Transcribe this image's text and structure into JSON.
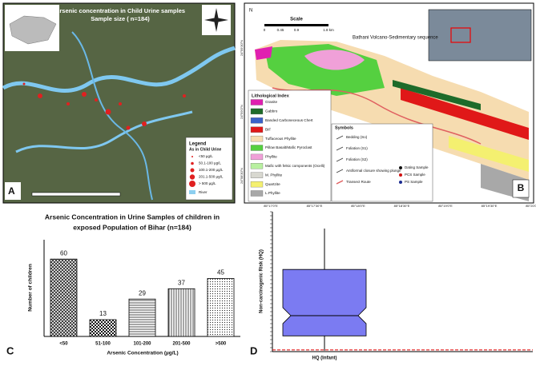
{
  "chart_data": [
    {
      "type": "bar",
      "title_lines": [
        "Arsenic Concentration in Urine Samples of children in",
        "exposed Population of Bihar (n=184)"
      ],
      "categories": [
        "<50",
        "51-100",
        "101-200",
        "201-500",
        ">500"
      ],
      "values": [
        60,
        13,
        29,
        37,
        45
      ],
      "patterns": [
        "crosshatch",
        "checker",
        "hlines",
        "vlines",
        "dots"
      ],
      "ylim": [
        0,
        75
      ],
      "x_label": "Arsenic Concentration (µg/L)",
      "y_label": "Number of children",
      "panel": "C"
    },
    {
      "type": "box",
      "categories": [
        "HQ (Infant)"
      ],
      "whisker_low": 0.5,
      "q1": 9,
      "median": 20.6,
      "q3": 47,
      "whisker_high": 70.4,
      "color": "#7b7bf2",
      "threshold": 1,
      "ylim": [
        0,
        80
      ],
      "y_label": "Non-carcinogenic Risk (HQ)",
      "panel": "D"
    }
  ],
  "map_a": {
    "title": "Arsenic concentration in Child Urine samples",
    "subtitle": "Sample size ( n=184)",
    "legend_title": "Legend",
    "legend_subtitle": "As in Child Urine",
    "legend_items": [
      "<50 µg/L",
      "50.1-100 µg/L",
      "100.1-200 µg/L",
      "201.1-500 µg/L",
      "> 500 µg/L"
    ],
    "river": "River",
    "panel": "A"
  },
  "map_b": {
    "scale_title": "Scale",
    "scale_labels": [
      "0",
      "0.45",
      "0.9",
      "1.8 km"
    ],
    "sequence": "Bathani Volcano-Sedimentary sequence",
    "litho_title": "Lithological Index",
    "litho_items": [
      {
        "label": "Granite",
        "color": "#e020b0"
      },
      {
        "label": "Gabbro",
        "color": "#1e6b2a"
      },
      {
        "label": "Banded Carboneceous Chert",
        "color": "#3a62c8"
      },
      {
        "label": "BIF",
        "color": "#e01818"
      },
      {
        "label": "Tuffaceous Phyllite",
        "color": "#f6dcb0"
      },
      {
        "label": "Pillow Basalt/Mafic Pyroclast",
        "color": "#55d040"
      },
      {
        "label": "Phyllite",
        "color": "#f0a0d8"
      },
      {
        "label": "Mafic with felsic components (Ocelli)",
        "color": "#b8f0a0"
      },
      {
        "label": "M. Phyllite",
        "color": "#d8d8d0"
      },
      {
        "label": "Quartzite",
        "color": "#f4f070"
      },
      {
        "label": "L.Phyllite",
        "color": "#a8a8a8"
      }
    ],
    "symbols_title": "Symbols",
    "symbols": [
      "Bedding (So)",
      "Foliation (S1)",
      "Foliation (S2)",
      "Antiformal closure showing plunge",
      "Transect Route"
    ],
    "samples": [
      {
        "label": "Dating Sample",
        "color": "#111"
      },
      {
        "label": "PCS Sample",
        "color": "#d01010"
      },
      {
        "label": "PS Sample",
        "color": "#1a2a90"
      }
    ],
    "lon_labels": [
      "85°17'0\"E",
      "85°17'30\"E",
      "85°18'0\"E",
      "85°18'30\"E",
      "85°19'0\"E",
      "85°19'30\"E",
      "85°20'0\"E"
    ],
    "lat_labels": [
      "24°59'30\"N",
      "24°59'0\"N",
      "24°58'30\"N"
    ],
    "panel": "B"
  }
}
